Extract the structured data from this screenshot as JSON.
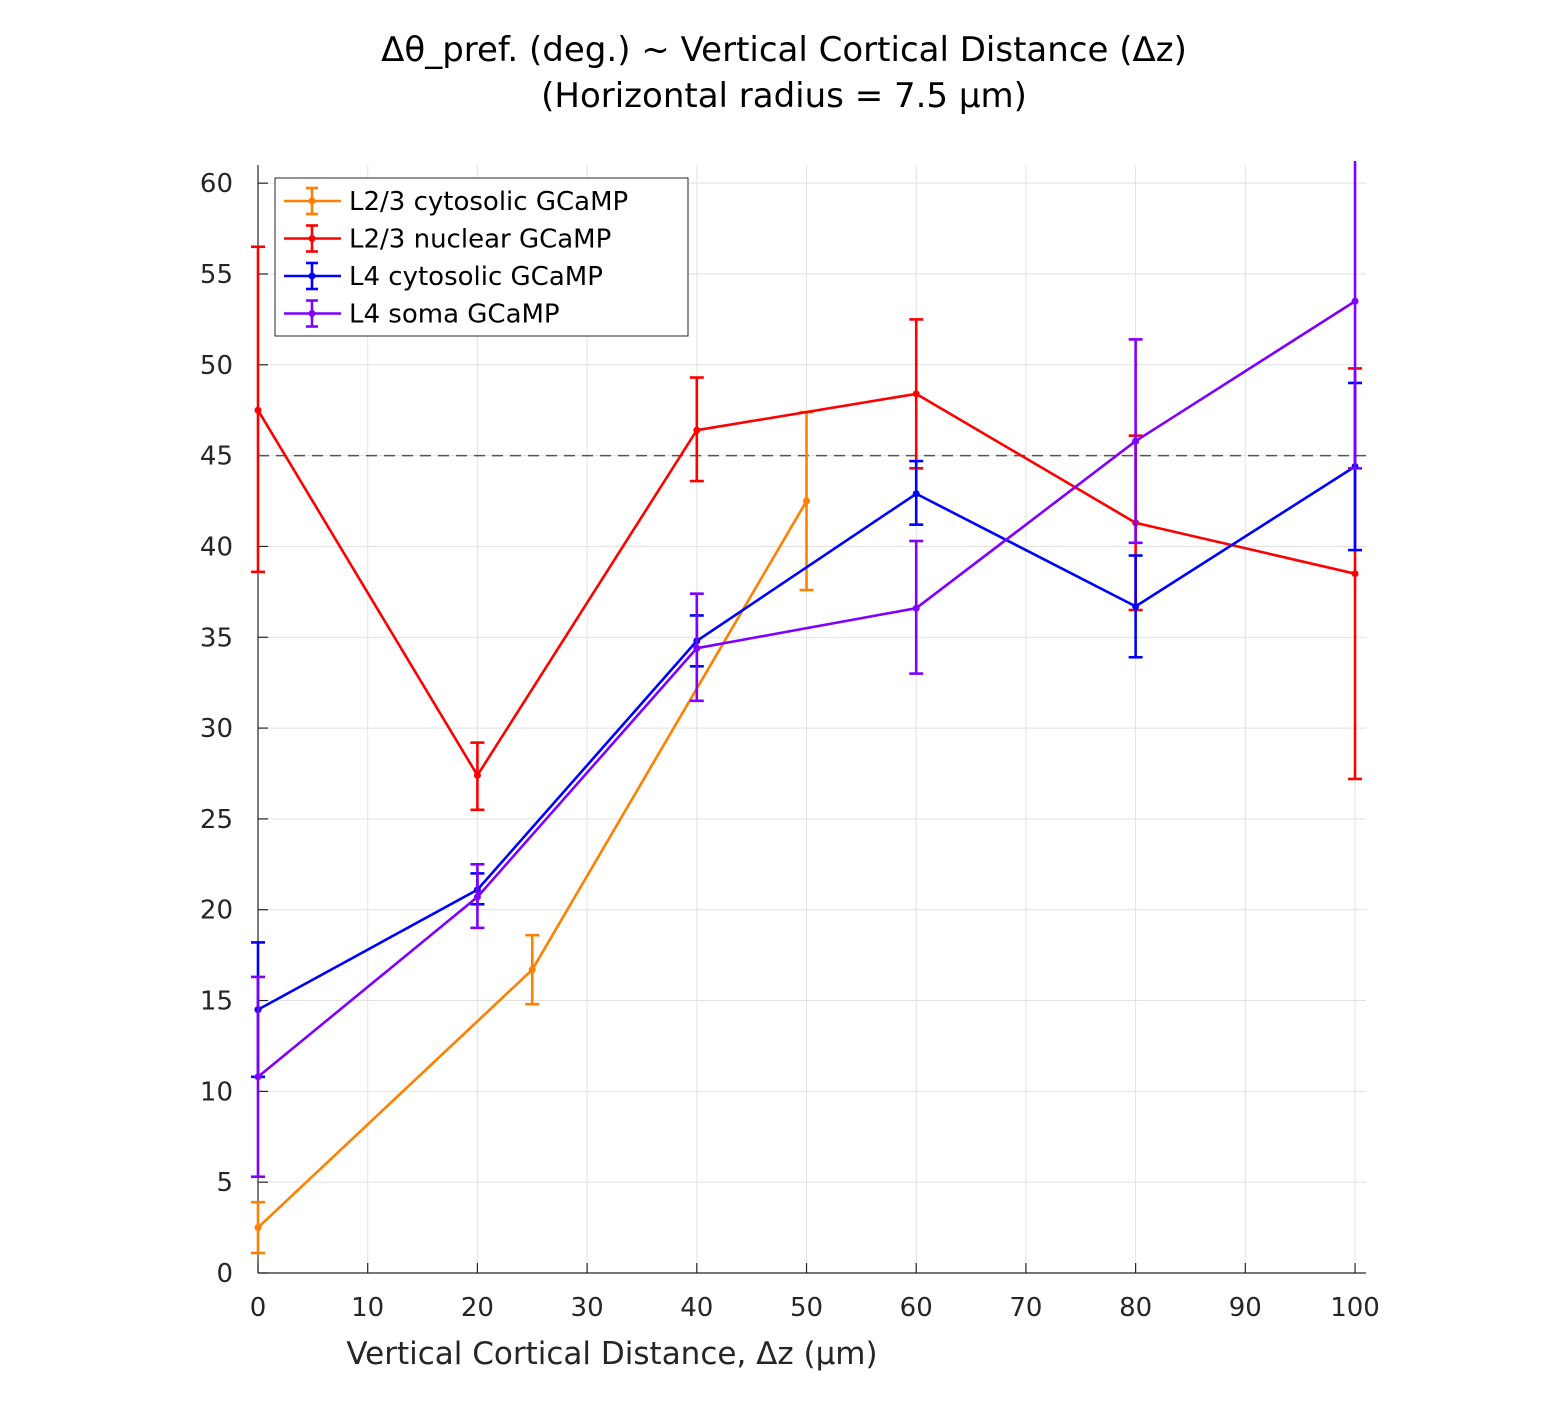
{
  "chart_data": {
    "type": "line",
    "title_line1": "Δθ_pref. (deg.) ~ Vertical Cortical Distance (Δz)",
    "title_line2": "(Horizontal radius = 7.5 μm)",
    "xlabel": "Vertical Cortical Distance, Δz (μm)",
    "ylabel": "",
    "xlim": [
      0,
      101
    ],
    "ylim": [
      0,
      61
    ],
    "xticks": [
      0,
      10,
      20,
      30,
      40,
      50,
      60,
      70,
      80,
      90,
      100
    ],
    "yticks": [
      0,
      5,
      10,
      15,
      20,
      25,
      30,
      35,
      40,
      45,
      50,
      55,
      60
    ],
    "grid": true,
    "error_bars": true,
    "legend_position": "top-left",
    "reference_line": {
      "y": 45,
      "style": "dashed",
      "color": "#555555"
    },
    "series": [
      {
        "name": "L2/3 cytosolic GCaMP",
        "color": "#ff8000",
        "x": [
          0,
          25,
          50
        ],
        "y": [
          2.5,
          16.7,
          42.5
        ],
        "err_low": [
          1.1,
          14.8,
          37.6
        ],
        "err_high": [
          3.9,
          18.6,
          47.4
        ]
      },
      {
        "name": "L2/3 nuclear GCaMP",
        "color": "#ff0000",
        "x": [
          0,
          20,
          40,
          60,
          80,
          100
        ],
        "y": [
          47.5,
          27.4,
          46.4,
          48.4,
          41.3,
          38.5
        ],
        "err_low": [
          38.6,
          25.5,
          43.6,
          44.3,
          36.5,
          27.2
        ],
        "err_high": [
          56.5,
          29.2,
          49.3,
          52.5,
          46.1,
          49.8
        ]
      },
      {
        "name": "L4 cytosolic GCaMP",
        "color": "#0000ff",
        "x": [
          0,
          20,
          40,
          60,
          80,
          100
        ],
        "y": [
          14.5,
          21.1,
          34.8,
          42.9,
          36.7,
          44.4
        ],
        "err_low": [
          10.8,
          20.3,
          33.4,
          41.2,
          33.9,
          39.8
        ],
        "err_high": [
          18.2,
          22.0,
          36.2,
          44.7,
          39.5,
          49.0
        ]
      },
      {
        "name": "L4 soma GCaMP",
        "color": "#8000ff",
        "x": [
          0,
          20,
          40,
          60,
          80,
          100
        ],
        "y": [
          10.8,
          20.7,
          34.4,
          36.6,
          45.8,
          53.5
        ],
        "err_low": [
          5.3,
          19.0,
          31.5,
          33.0,
          40.2,
          44.3
        ],
        "err_high": [
          16.3,
          22.5,
          37.4,
          40.3,
          51.4,
          62.0
        ]
      }
    ]
  }
}
